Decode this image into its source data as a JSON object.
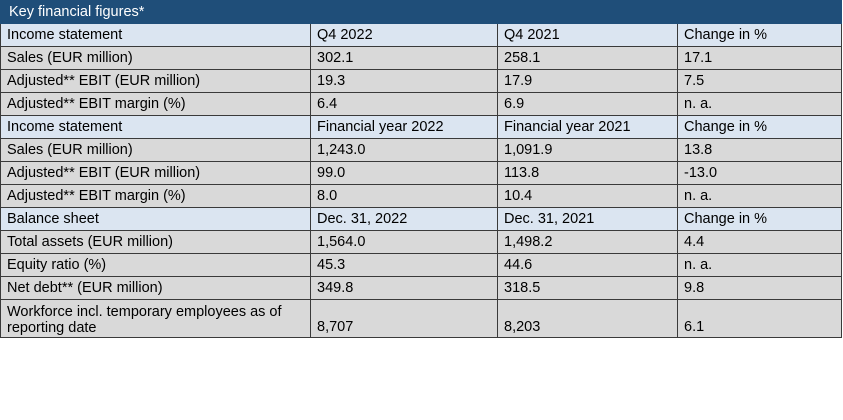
{
  "table": {
    "title": "Key financial figures*",
    "sections": [
      {
        "header": [
          "Income statement",
          "Q4 2022",
          "Q4 2021",
          "Change in %"
        ],
        "rows": [
          [
            "Sales (EUR million)",
            "302.1",
            "258.1",
            "17.1"
          ],
          [
            "Adjusted** EBIT (EUR million)",
            "19.3",
            "17.9",
            "7.5"
          ],
          [
            "Adjusted** EBIT margin (%)",
            "6.4",
            "6.9",
            "n. a."
          ]
        ]
      },
      {
        "header": [
          "Income statement",
          "Financial year 2022",
          "Financial year 2021",
          "Change in %"
        ],
        "rows": [
          [
            "Sales (EUR million)",
            "1,243.0",
            "1,091.9",
            "13.8"
          ],
          [
            "Adjusted** EBIT (EUR million)",
            "99.0",
            "113.8",
            "-13.0"
          ],
          [
            "Adjusted** EBIT margin (%)",
            "8.0",
            "10.4",
            "n. a."
          ]
        ]
      },
      {
        "header": [
          "Balance sheet",
          "Dec. 31, 2022",
          "Dec. 31, 2021",
          "Change in %"
        ],
        "rows": [
          [
            "Total assets (EUR million)",
            "1,564.0",
            "1,498.2",
            "4.4"
          ],
          [
            "Equity ratio (%)",
            "45.3",
            "44.6",
            "n. a."
          ],
          [
            "Net debt** (EUR million)",
            "349.8",
            "318.5",
            "9.8"
          ],
          [
            "Workforce incl. temporary employees as of reporting date",
            "8,707",
            "8,203",
            "6.1"
          ]
        ]
      }
    ]
  }
}
